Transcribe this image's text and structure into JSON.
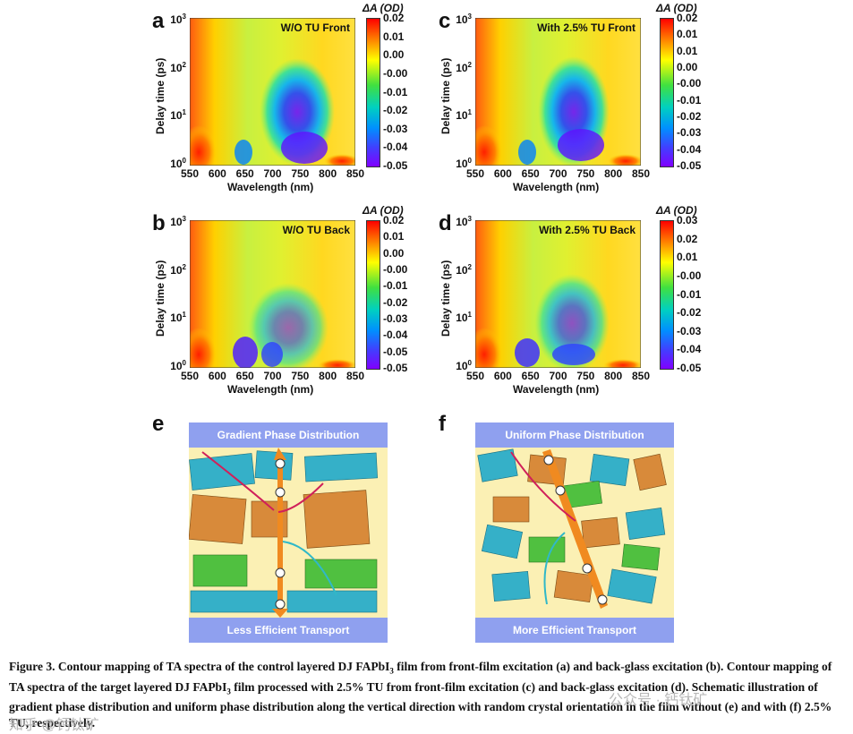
{
  "panels": {
    "a": {
      "label": "a",
      "title": "W/O TU Front",
      "cbar_title": "ΔA (OD)",
      "cbar_ticks": [
        "0.02",
        "0.01",
        "0.00",
        "-0.00",
        "-0.01",
        "-0.02",
        "-0.03",
        "-0.04",
        "-0.05"
      ]
    },
    "b": {
      "label": "b",
      "title": "W/O TU Back",
      "cbar_title": "ΔA (OD)",
      "cbar_ticks": [
        "0.02",
        "0.01",
        "0.00",
        "-0.00",
        "-0.01",
        "-0.02",
        "-0.03",
        "-0.04",
        "-0.05",
        "-0.05"
      ]
    },
    "c": {
      "label": "c",
      "title": "With 2.5% TU Front",
      "cbar_title": "ΔA (OD)",
      "cbar_ticks": [
        "0.02",
        "0.01",
        "0.01",
        "0.00",
        "-0.00",
        "-0.01",
        "-0.02",
        "-0.03",
        "-0.04",
        "-0.05"
      ]
    },
    "d": {
      "label": "d",
      "title": "With 2.5% TU Back",
      "cbar_title": "ΔA (OD)",
      "cbar_ticks": [
        "0.03",
        "0.02",
        "0.01",
        "-0.00",
        "-0.01",
        "-0.02",
        "-0.03",
        "-0.04",
        "-0.05"
      ]
    }
  },
  "axes": {
    "xlabel": "Wavelength (nm)",
    "ylabel": "Delay time (ps)",
    "xticks": [
      "550",
      "600",
      "650",
      "700",
      "750",
      "800",
      "850"
    ],
    "yticks": [
      {
        "base": "10",
        "exp": "3"
      },
      {
        "base": "10",
        "exp": "2"
      },
      {
        "base": "10",
        "exp": "1"
      },
      {
        "base": "10",
        "exp": "0"
      }
    ]
  },
  "schematics": {
    "e": {
      "label": "e",
      "top": "Gradient Phase Distribution",
      "bottom": "Less Efficient Transport"
    },
    "f": {
      "label": "f",
      "top": "Uniform Phase Distribution",
      "bottom": "More Efficient Transport"
    }
  },
  "caption": {
    "line1": "Figure 3. Contour mapping of TA spectra of the control layered DJ FAPbI",
    "sub1": "3",
    "line1b": " film from front-film excitation (a) and back-glass excitation (b).",
    "line2": "Contour mapping of TA spectra of the target layered DJ FAPbI",
    "sub2": "3",
    "line2b": " film processed with 2.5% TU from front-film excitation (c) and back-glass excitation (d). Schematic illustration of gradient phase distribution and uniform phase distribution along the vertical direction with random crystal orientation in the film without (e) and with (f) 2.5% TU, respectively."
  },
  "watermarks": {
    "a": "公众号 · 钙钛矿",
    "b": "知乎 @钙钛矿"
  }
}
